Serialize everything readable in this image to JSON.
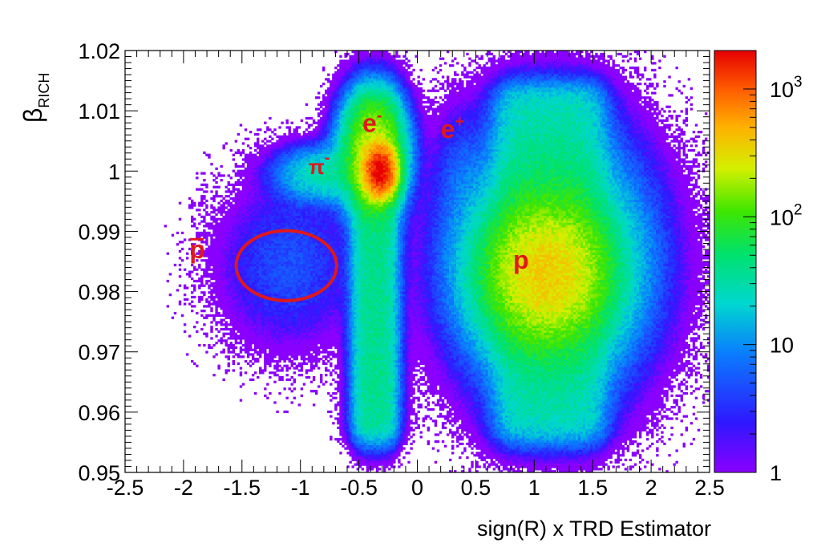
{
  "chart_data": {
    "type": "heatmap",
    "title": "",
    "xlabel": "sign(R) x TRD Estimator",
    "ylabel": {
      "main": "β",
      "sub": "RICH"
    },
    "xlim": [
      -2.5,
      2.5
    ],
    "ylim": [
      0.95,
      1.02
    ],
    "x_ticks": [
      "-2.5",
      "-2",
      "-1.5",
      "-1",
      "-0.5",
      "0",
      "0.5",
      "1",
      "1.5",
      "2",
      "2.5"
    ],
    "y_ticks": [
      "0.95",
      "0.96",
      "0.97",
      "0.98",
      "0.99",
      "1",
      "1.01",
      "1.02"
    ],
    "grid": false,
    "z_scale": "log",
    "z_range": [
      1,
      2000
    ],
    "colorbar": {
      "labels": [
        {
          "base": "1",
          "exp": "",
          "value": 1
        },
        {
          "base": "10",
          "exp": "",
          "value": 10
        },
        {
          "base": "10",
          "exp": "2",
          "value": 100
        },
        {
          "base": "10",
          "exp": "3",
          "value": 1000
        }
      ]
    },
    "populations": [
      {
        "label": "p̄",
        "x_center": -1.1,
        "y_center": 0.984,
        "peak_counts": 5
      },
      {
        "label": "π⁻",
        "x_center": -0.8,
        "y_center": 1.0,
        "peak_counts": 30
      },
      {
        "label": "e⁻",
        "x_center": -0.3,
        "y_center": 1.0,
        "peak_counts": 2000
      },
      {
        "label": "e⁺",
        "x_center": 0.35,
        "y_center": 1.0,
        "peak_counts": 3
      },
      {
        "label": "p",
        "x_center": 1.1,
        "y_center": 0.983,
        "peak_counts": 300
      }
    ],
    "annotations": [
      {
        "text": "p",
        "overline": true,
        "x": -1.95,
        "y": 0.9855
      },
      {
        "text": "π",
        "sup": "-",
        "x": -0.93,
        "y": 0.9995
      },
      {
        "text": "e",
        "sup": "-",
        "x": -0.47,
        "y": 1.0065
      },
      {
        "text": "e",
        "sup": "+",
        "x": 0.2,
        "y": 1.0055
      },
      {
        "text": "p",
        "overline": false,
        "x": 0.82,
        "y": 0.9838
      }
    ],
    "ellipse": {
      "x_center": -1.12,
      "y_center": 0.9843,
      "x_radius": 0.43,
      "y_radius": 0.0058,
      "color": "#e0181c"
    }
  }
}
